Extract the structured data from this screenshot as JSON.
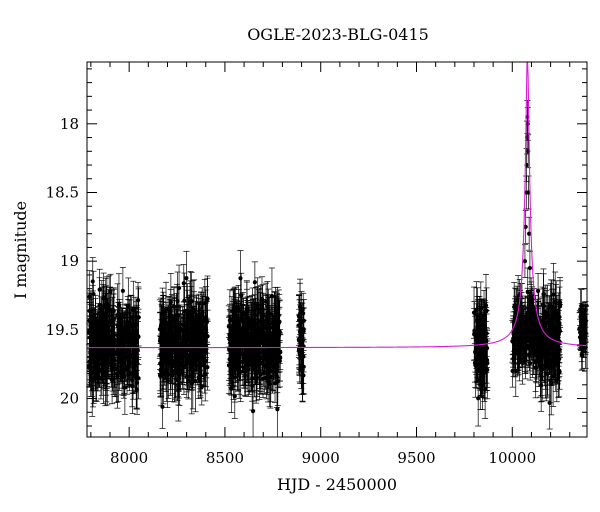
{
  "chart_data": {
    "type": "scatter",
    "title": "OGLE-2023-BLG-0415",
    "xlabel": "HJD - 2450000",
    "ylabel": "I magnitude",
    "xlim": [
      7780,
      10390
    ],
    "ylim": [
      20.28,
      17.55
    ],
    "y_inverted": true,
    "grid": false,
    "x_ticks": [
      {
        "value": 8000,
        "label": "8000"
      },
      {
        "value": 8500,
        "label": "8500"
      },
      {
        "value": 9000,
        "label": "9000"
      },
      {
        "value": 9500,
        "label": "9500"
      },
      {
        "value": 10000,
        "label": "10000"
      }
    ],
    "y_ticks": [
      {
        "value": 18,
        "label": "18"
      },
      {
        "value": 18.5,
        "label": "18.5"
      },
      {
        "value": 19,
        "label": "19"
      },
      {
        "value": 19.5,
        "label": "19.5"
      },
      {
        "value": 20,
        "label": "20"
      }
    ],
    "colors": {
      "data": "#000000",
      "model": "#d81fd8",
      "axes": "#000000"
    },
    "series": [
      {
        "kind": "observations",
        "marker": "filled-circle",
        "errorbars": true,
        "seasons": [
          {
            "x_range": [
              7790,
              8050
            ],
            "baseline": 19.6,
            "scatter": 0.25,
            "errorbar": 0.18
          },
          {
            "x_range": [
              8160,
              8410
            ],
            "baseline": 19.6,
            "scatter": 0.25,
            "errorbar": 0.18
          },
          {
            "x_range": [
              8520,
              8790
            ],
            "baseline": 19.6,
            "scatter": 0.25,
            "errorbar": 0.18
          },
          {
            "x_range": [
              8885,
              8915
            ],
            "baseline": 19.6,
            "scatter": 0.25,
            "errorbar": 0.18
          },
          {
            "x_range": [
              9800,
              9870
            ],
            "baseline": 19.65,
            "scatter": 0.25,
            "errorbar": 0.2
          },
          {
            "x_range": [
              10000,
              10040
            ],
            "baseline": 19.55,
            "scatter": 0.2,
            "errorbar": 0.15
          },
          {
            "x_range": [
              10040,
              10120
            ],
            "baseline": 19.5,
            "scatter": 0.2,
            "errorbar": 0.15
          },
          {
            "x_range": [
              10120,
              10250
            ],
            "baseline": 19.6,
            "scatter": 0.25,
            "errorbar": 0.18
          },
          {
            "x_range": [
              10350,
              10385
            ],
            "baseline": 19.5,
            "scatter": 0.15,
            "errorbar": 0.12
          }
        ],
        "peak_points": [
          {
            "x": 10066,
            "y": 19.0
          },
          {
            "x": 10070,
            "y": 18.75
          },
          {
            "x": 10073,
            "y": 18.5
          },
          {
            "x": 10075,
            "y": 18.3
          },
          {
            "x": 10077,
            "y": 18.1
          },
          {
            "x": 10079,
            "y": 17.95
          },
          {
            "x": 10081,
            "y": 18.0
          },
          {
            "x": 10083,
            "y": 18.2
          },
          {
            "x": 10085,
            "y": 18.5
          },
          {
            "x": 10088,
            "y": 18.8
          },
          {
            "x": 10092,
            "y": 19.05
          }
        ]
      },
      {
        "kind": "model",
        "baseline": 19.63,
        "t0": 10079,
        "peak": 17.55
      }
    ]
  }
}
